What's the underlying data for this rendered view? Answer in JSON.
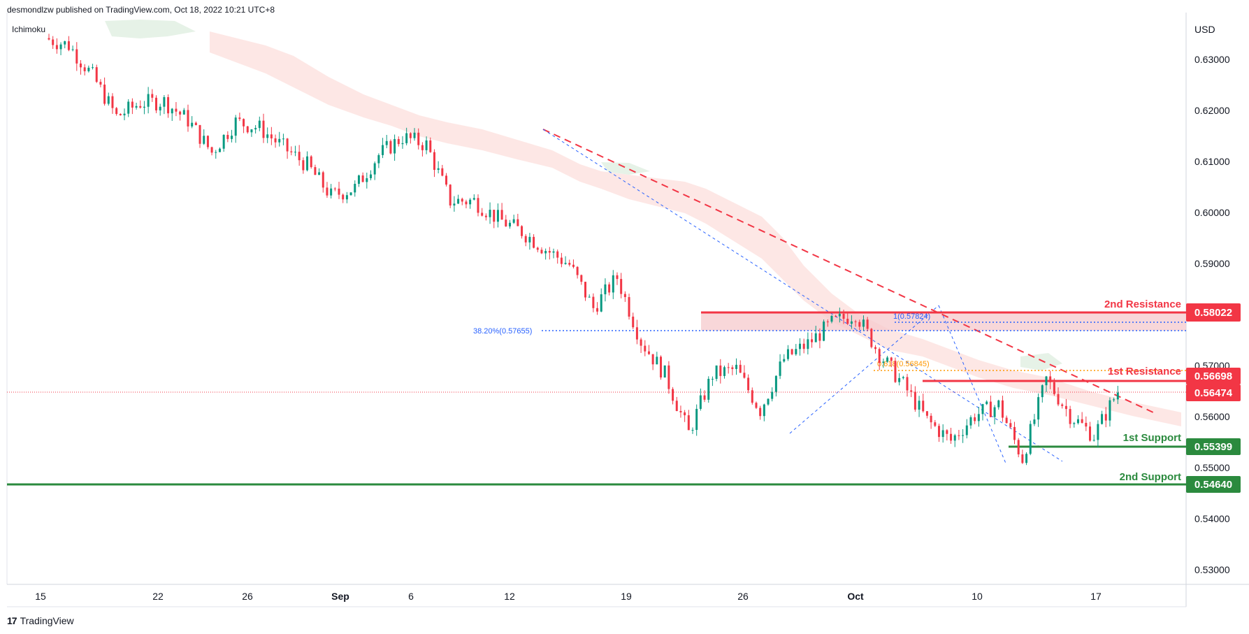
{
  "header": {
    "published_by": "desmondlzw published on TradingView.com, Oct 18, 2022 10:21 UTC+8",
    "indicator": "Ichimoku",
    "currency": "USD"
  },
  "footer": {
    "logo_mark": "17",
    "logo_text": "TradingView"
  },
  "colors": {
    "resistance": "#f23645",
    "support": "#2b8a3e",
    "bull": "#089981",
    "bear": "#f23645",
    "fib": "#2962ff",
    "fib_mid": "#ff9800",
    "cloud_bear": "#fde3e1",
    "cloud_bull": "#e3f1e4",
    "zone": "#f6c9cc"
  },
  "chart_data": {
    "type": "candlestick",
    "title": "",
    "x_axis_labels": [
      "15",
      "22",
      "26",
      "Sep",
      "6",
      "12",
      "19",
      "26",
      "Oct",
      "10",
      "17"
    ],
    "y_axis_ticks": [
      "0.63000",
      "0.62000",
      "0.61000",
      "0.60000",
      "0.59000",
      "0.57000",
      "0.56000",
      "0.55000",
      "0.54000",
      "0.53000"
    ],
    "ylim": [
      0.525,
      0.635
    ],
    "current_price": "0.56474",
    "levels": [
      {
        "label": "2nd Resistance",
        "value": "0.58022",
        "kind": "resistance"
      },
      {
        "label": "1st Resistance",
        "value": "0.56698",
        "kind": "resistance"
      },
      {
        "label": "1st Support",
        "value": "0.55399",
        "kind": "support"
      },
      {
        "label": "2nd Support",
        "value": "0.54640",
        "kind": "support"
      }
    ],
    "fib_labels": [
      {
        "label": "38.20%(0.57655)",
        "value": 0.57655
      },
      {
        "label": "1(0.57824)",
        "value": 0.57824
      },
      {
        "label": "0.618(0.56845)",
        "value": 0.56845
      }
    ],
    "close_path": [
      [
        "Aug 15",
        0.6339
      ],
      [
        "Aug 17",
        0.6325
      ],
      [
        "Aug 19",
        0.6265
      ],
      [
        "Aug 22",
        0.6185
      ],
      [
        "Aug 24",
        0.6212
      ],
      [
        "Aug 26",
        0.6215
      ],
      [
        "Aug 29",
        0.6178
      ],
      [
        "Aug 30",
        0.6115
      ],
      [
        "Aug 31",
        0.6175
      ],
      [
        "Sep 1",
        0.6163
      ],
      [
        "Sep 2",
        0.6125
      ],
      [
        "Sep 6",
        0.609
      ],
      [
        "Sep 7",
        0.603
      ],
      [
        "Sep 8",
        0.6045
      ],
      [
        "Sep 9",
        0.611
      ],
      [
        "Sep 12",
        0.6145
      ],
      [
        "Sep 13",
        0.613
      ],
      [
        "Sep 14",
        0.602
      ],
      [
        "Sep 16",
        0.602
      ],
      [
        "Sep 19",
        0.5985
      ],
      [
        "Sep 20",
        0.596
      ],
      [
        "Sep 21",
        0.5925
      ],
      [
        "Sep 22",
        0.5895
      ],
      [
        "Sep 23",
        0.581
      ],
      [
        "Sep 24",
        0.587
      ],
      [
        "Sep 26",
        0.5745
      ],
      [
        "Sep 27",
        0.568
      ],
      [
        "Sep 28",
        0.5565
      ],
      [
        "Sep 29",
        0.568
      ],
      [
        "Sep 30",
        0.569
      ],
      [
        "Oct 1",
        0.561
      ],
      [
        "Oct 3",
        0.571
      ],
      [
        "Oct 4",
        0.574
      ],
      [
        "Oct 5",
        0.578
      ],
      [
        "Oct 6",
        0.58
      ],
      [
        "Oct 7",
        0.572
      ],
      [
        "Oct 8",
        0.566
      ],
      [
        "Oct 10",
        0.559
      ],
      [
        "Oct 11",
        0.555
      ],
      [
        "Oct 12",
        0.56
      ],
      [
        "Oct 13",
        0.562
      ],
      [
        "Oct 14",
        0.5515
      ],
      [
        "Oct 15",
        0.567
      ],
      [
        "Oct 16",
        0.56
      ],
      [
        "Oct 17",
        0.556
      ],
      [
        "Oct 18",
        0.5647
      ]
    ]
  }
}
